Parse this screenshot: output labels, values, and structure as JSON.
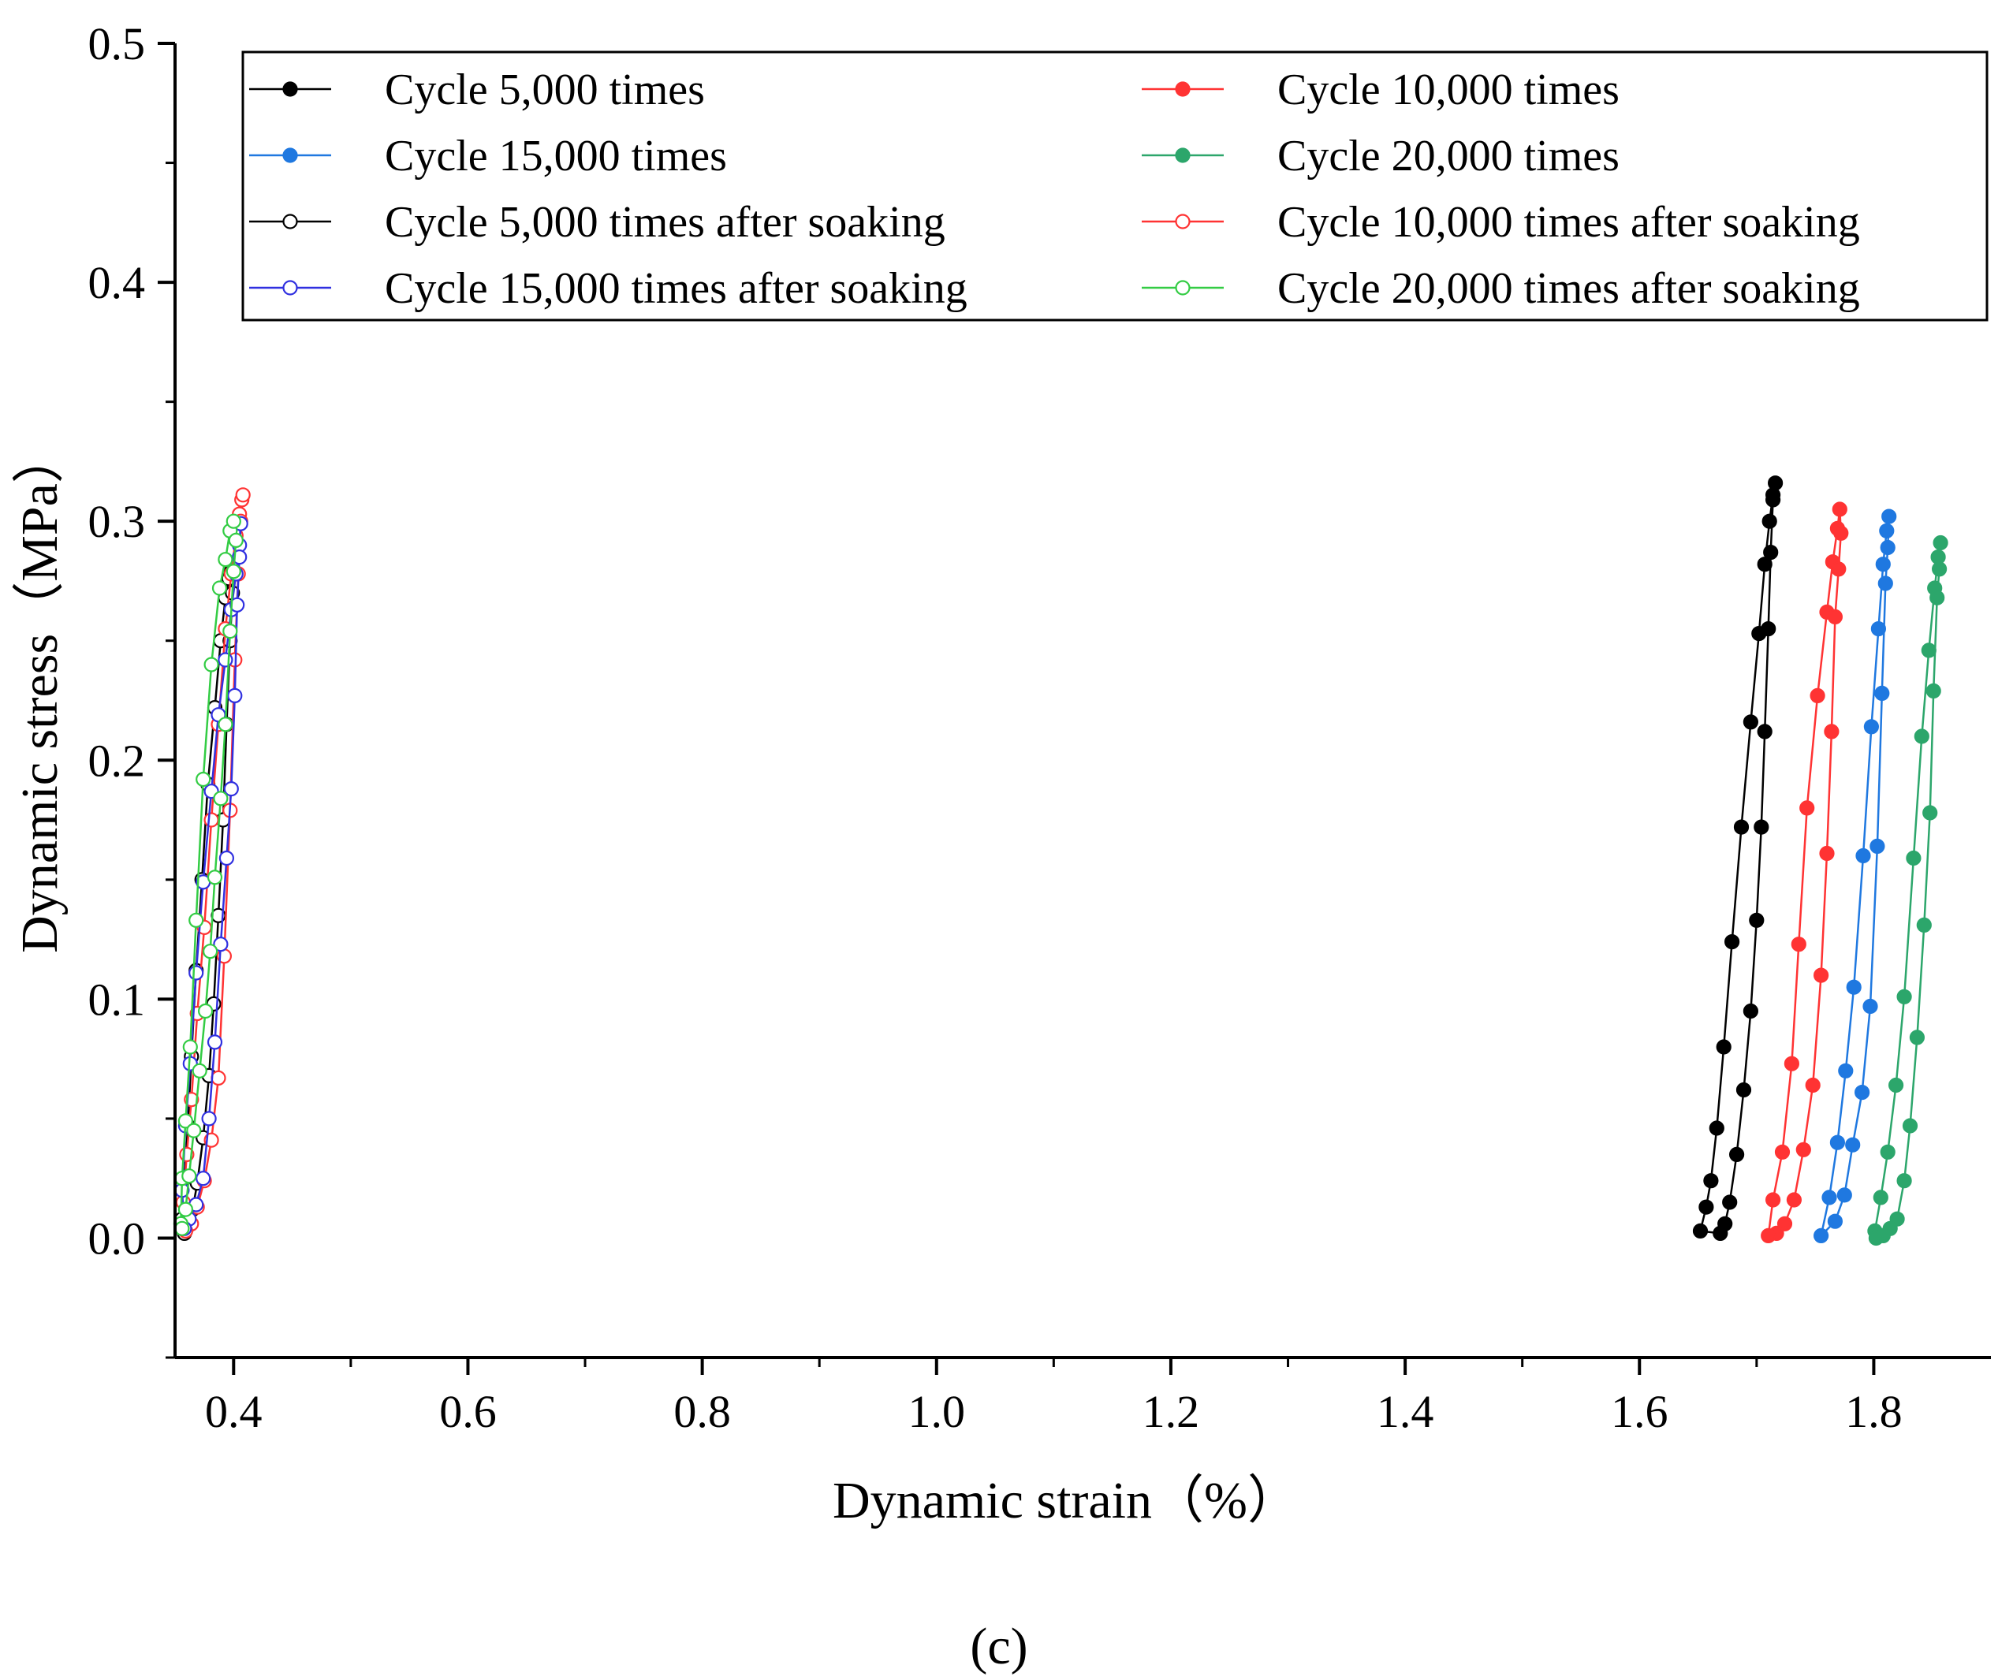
{
  "chart_data": {
    "type": "line",
    "title": "",
    "xlabel": "Dynamic strain（%）",
    "ylabel": "Dynamic stress（MPa）",
    "panel_label": "(c)",
    "xlim": [
      0.35,
      1.9
    ],
    "ylim": [
      -0.05,
      0.5
    ],
    "x_ticks": [
      0.4,
      0.6,
      0.8,
      1.0,
      1.2,
      1.4,
      1.6,
      1.8
    ],
    "x_tick_labels": [
      "0.4",
      "0.6",
      "0.8",
      "1.0",
      "1.2",
      "1.4",
      "1.6",
      "1.8"
    ],
    "y_ticks": [
      0.0,
      0.1,
      0.2,
      0.3,
      0.4,
      0.5
    ],
    "y_tick_labels": [
      "0.0",
      "0.1",
      "0.2",
      "0.3",
      "0.4",
      "0.5"
    ],
    "grid": false,
    "legend_position": "top",
    "series": [
      {
        "name": "Cycle 5,000 times",
        "color": "#000000",
        "marker": "filled",
        "x": [
          1.652,
          1.657,
          1.661,
          1.666,
          1.672,
          1.679,
          1.687,
          1.695,
          1.702,
          1.707,
          1.711,
          1.714,
          1.716,
          1.714,
          1.712,
          1.71,
          1.707,
          1.704,
          1.7,
          1.695,
          1.689,
          1.683,
          1.677,
          1.673,
          1.669
        ],
        "y": [
          0.003,
          0.013,
          0.024,
          0.046,
          0.08,
          0.124,
          0.172,
          0.216,
          0.253,
          0.282,
          0.3,
          0.311,
          0.316,
          0.309,
          0.287,
          0.255,
          0.212,
          0.172,
          0.133,
          0.095,
          0.062,
          0.035,
          0.015,
          0.006,
          0.002
        ]
      },
      {
        "name": "Cycle 10,000 times",
        "color": "#ff3333",
        "marker": "filled",
        "x": [
          1.714,
          1.722,
          1.73,
          1.736,
          1.743,
          1.752,
          1.76,
          1.765,
          1.769,
          1.771,
          1.772,
          1.77,
          1.767,
          1.764,
          1.76,
          1.755,
          1.748,
          1.74,
          1.732,
          1.724,
          1.717,
          1.71
        ],
        "y": [
          0.016,
          0.036,
          0.073,
          0.123,
          0.18,
          0.227,
          0.262,
          0.283,
          0.297,
          0.305,
          0.295,
          0.28,
          0.26,
          0.212,
          0.161,
          0.11,
          0.064,
          0.037,
          0.016,
          0.006,
          0.002,
          0.001
        ]
      },
      {
        "name": "Cycle 15,000 times",
        "color": "#1f78e0",
        "marker": "filled",
        "x": [
          1.755,
          1.762,
          1.769,
          1.776,
          1.783,
          1.791,
          1.798,
          1.804,
          1.808,
          1.811,
          1.813,
          1.812,
          1.81,
          1.807,
          1.803,
          1.797,
          1.79,
          1.782,
          1.775,
          1.767
        ],
        "y": [
          0.001,
          0.017,
          0.04,
          0.07,
          0.105,
          0.16,
          0.214,
          0.255,
          0.282,
          0.296,
          0.302,
          0.289,
          0.274,
          0.228,
          0.164,
          0.097,
          0.061,
          0.039,
          0.018,
          0.007
        ]
      },
      {
        "name": "Cycle 20,000 times",
        "color": "#2ca66b",
        "marker": "filled",
        "x": [
          1.801,
          1.806,
          1.812,
          1.819,
          1.826,
          1.834,
          1.841,
          1.847,
          1.852,
          1.855,
          1.857,
          1.856,
          1.854,
          1.851,
          1.848,
          1.843,
          1.837,
          1.831,
          1.826,
          1.82,
          1.814,
          1.808,
          1.802
        ],
        "y": [
          0.003,
          0.017,
          0.036,
          0.064,
          0.101,
          0.159,
          0.21,
          0.246,
          0.272,
          0.285,
          0.291,
          0.28,
          0.268,
          0.229,
          0.178,
          0.131,
          0.084,
          0.047,
          0.024,
          0.008,
          0.004,
          0.001,
          0.0
        ]
      },
      {
        "name": "Cycle 5,000 times after soaking",
        "color": "#000000",
        "marker": "open",
        "x": [
          0.356,
          0.358,
          0.361,
          0.364,
          0.368,
          0.373,
          0.378,
          0.384,
          0.389,
          0.393,
          0.396,
          0.398,
          0.399,
          0.397,
          0.394,
          0.391,
          0.387,
          0.383,
          0.379,
          0.374,
          0.369,
          0.365,
          0.361,
          0.358
        ],
        "y": [
          0.008,
          0.025,
          0.047,
          0.076,
          0.112,
          0.15,
          0.19,
          0.222,
          0.25,
          0.268,
          0.276,
          0.279,
          0.27,
          0.25,
          0.215,
          0.175,
          0.135,
          0.098,
          0.068,
          0.042,
          0.023,
          0.012,
          0.005,
          0.002
        ]
      },
      {
        "name": "Cycle 10,000 times after soaking",
        "color": "#ff3333",
        "marker": "open",
        "x": [
          0.357,
          0.36,
          0.364,
          0.369,
          0.375,
          0.381,
          0.387,
          0.393,
          0.398,
          0.402,
          0.405,
          0.407,
          0.408,
          0.406,
          0.404,
          0.401,
          0.397,
          0.392,
          0.387,
          0.381,
          0.375,
          0.369,
          0.364,
          0.359
        ],
        "y": [
          0.015,
          0.035,
          0.058,
          0.094,
          0.13,
          0.175,
          0.215,
          0.255,
          0.278,
          0.294,
          0.303,
          0.309,
          0.311,
          0.3,
          0.278,
          0.242,
          0.179,
          0.118,
          0.067,
          0.041,
          0.024,
          0.013,
          0.006,
          0.003
        ]
      },
      {
        "name": "Cycle 15,000 times after soaking",
        "color": "#3030e0",
        "marker": "open",
        "x": [
          0.356,
          0.359,
          0.363,
          0.368,
          0.374,
          0.381,
          0.387,
          0.393,
          0.398,
          0.402,
          0.405,
          0.406,
          0.405,
          0.403,
          0.401,
          0.398,
          0.394,
          0.389,
          0.384,
          0.379,
          0.374,
          0.368,
          0.362,
          0.358
        ],
        "y": [
          0.02,
          0.047,
          0.073,
          0.111,
          0.149,
          0.187,
          0.219,
          0.242,
          0.263,
          0.278,
          0.29,
          0.299,
          0.285,
          0.265,
          0.227,
          0.188,
          0.159,
          0.123,
          0.082,
          0.05,
          0.025,
          0.014,
          0.008,
          0.004
        ]
      },
      {
        "name": "Cycle 20,000 times after soaking",
        "color": "#33cc44",
        "marker": "open",
        "x": [
          0.355,
          0.356,
          0.359,
          0.363,
          0.368,
          0.374,
          0.381,
          0.388,
          0.393,
          0.397,
          0.4,
          0.402,
          0.4,
          0.397,
          0.393,
          0.389,
          0.384,
          0.38,
          0.376,
          0.371,
          0.366,
          0.362,
          0.359,
          0.356
        ],
        "y": [
          0.006,
          0.025,
          0.049,
          0.08,
          0.133,
          0.192,
          0.24,
          0.272,
          0.284,
          0.296,
          0.3,
          0.292,
          0.279,
          0.254,
          0.215,
          0.184,
          0.151,
          0.12,
          0.095,
          0.07,
          0.045,
          0.026,
          0.012,
          0.004
        ]
      }
    ]
  }
}
